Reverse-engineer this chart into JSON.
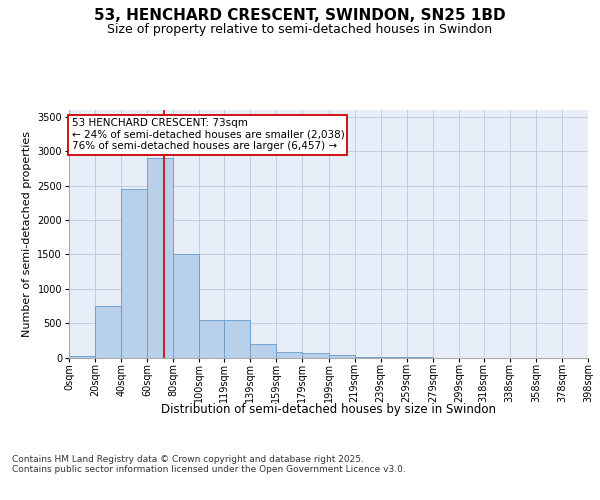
{
  "title": "53, HENCHARD CRESCENT, SWINDON, SN25 1BD",
  "subtitle": "Size of property relative to semi-detached houses in Swindon",
  "xlabel": "Distribution of semi-detached houses by size in Swindon",
  "ylabel": "Number of semi-detached properties",
  "property_label": "53 HENCHARD CRESCENT: 73sqm",
  "pct_smaller": 24,
  "n_smaller": "2,038",
  "pct_larger": 76,
  "n_larger": "6,457",
  "bin_labels": [
    "0sqm",
    "20sqm",
    "40sqm",
    "60sqm",
    "80sqm",
    "100sqm",
    "119sqm",
    "139sqm",
    "159sqm",
    "179sqm",
    "199sqm",
    "219sqm",
    "239sqm",
    "259sqm",
    "279sqm",
    "299sqm",
    "318sqm",
    "338sqm",
    "358sqm",
    "378sqm",
    "398sqm"
  ],
  "bin_edges": [
    0,
    20,
    40,
    60,
    80,
    100,
    119,
    139,
    159,
    179,
    199,
    219,
    239,
    259,
    279,
    299,
    318,
    338,
    358,
    378,
    398
  ],
  "bar_values": [
    20,
    750,
    2450,
    2900,
    1500,
    550,
    550,
    200,
    80,
    60,
    30,
    5,
    2,
    1,
    0,
    0,
    0,
    0,
    0,
    0
  ],
  "bar_color": "#b8d0ea",
  "bar_edge_color": "#6699cc",
  "vline_color": "#cc0000",
  "vline_x": 73,
  "box_color": "#cc0000",
  "background_color": "#e8eef8",
  "grid_color": "#c0cce0",
  "ylim": [
    0,
    3600
  ],
  "yticks": [
    0,
    500,
    1000,
    1500,
    2000,
    2500,
    3000,
    3500
  ],
  "footer": "Contains HM Land Registry data © Crown copyright and database right 2025.\nContains public sector information licensed under the Open Government Licence v3.0.",
  "title_fontsize": 11,
  "subtitle_fontsize": 9,
  "annotation_fontsize": 7.5,
  "ylabel_fontsize": 8,
  "xlabel_fontsize": 8.5,
  "footer_fontsize": 6.5,
  "tick_fontsize": 7
}
